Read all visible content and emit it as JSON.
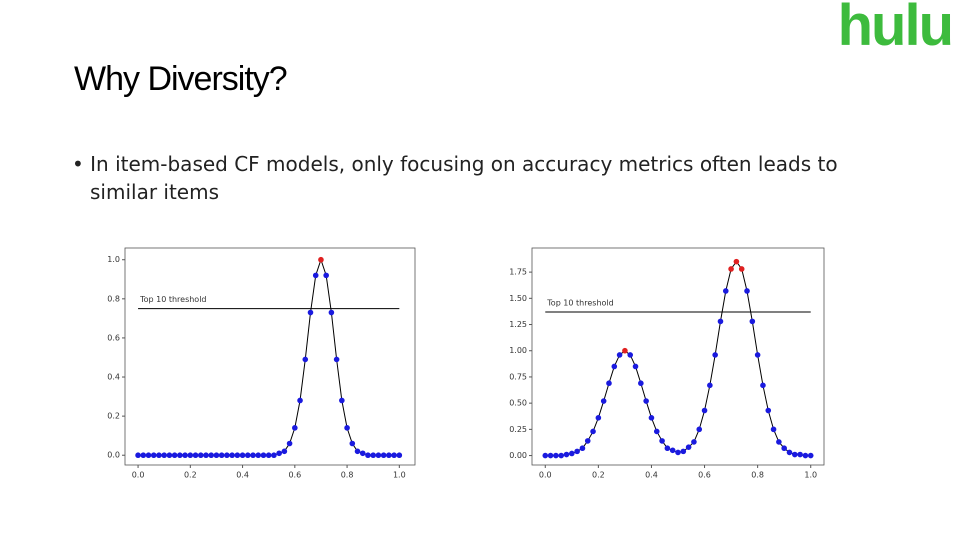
{
  "header": {
    "logo": "hulu",
    "title": "Why  Diversity?"
  },
  "bullet": "• In item-based CF models, only focusing on accuracy metrics often leads to similar items",
  "chart_data": [
    {
      "type": "scatter-line",
      "color": "#1a1adf",
      "line_color": "#000000",
      "highlight_color": "#e02020",
      "highlight": [
        35
      ],
      "threshold": {
        "value": 0.75,
        "label": "Top 10 threshold"
      },
      "xlim": [
        -0.05,
        1.06
      ],
      "ylim": [
        -0.05,
        1.06
      ],
      "xticks": [
        {
          "value": 0,
          "label": "0.0"
        },
        {
          "value": 0.2,
          "label": "0.2"
        },
        {
          "value": 0.4,
          "label": "0.4"
        },
        {
          "value": 0.6,
          "label": "0.6"
        },
        {
          "value": 0.8,
          "label": "0.8"
        },
        {
          "value": 1,
          "label": "1.0"
        }
      ],
      "yticks": [
        {
          "value": 0,
          "label": "0.0"
        },
        {
          "value": 0.2,
          "label": "0.2"
        },
        {
          "value": 0.4,
          "label": "0.4"
        },
        {
          "value": 0.6,
          "label": "0.6"
        },
        {
          "value": 0.8,
          "label": "0.8"
        },
        {
          "value": 1,
          "label": "1.0"
        }
      ],
      "x": [
        0,
        0.02,
        0.04,
        0.06,
        0.08,
        0.1,
        0.12,
        0.14,
        0.16,
        0.18,
        0.2,
        0.22,
        0.24,
        0.26,
        0.28,
        0.3,
        0.32,
        0.34,
        0.36,
        0.38,
        0.4,
        0.42,
        0.44,
        0.46,
        0.48,
        0.5,
        0.52,
        0.54,
        0.56,
        0.58,
        0.6,
        0.62,
        0.64,
        0.66,
        0.68,
        0.7,
        0.72,
        0.74,
        0.76,
        0.78,
        0.8,
        0.82,
        0.84,
        0.86,
        0.88,
        0.9,
        0.92,
        0.94,
        0.96,
        0.98,
        1
      ],
      "values": [
        0,
        0,
        0,
        0,
        0,
        0,
        0,
        0,
        0,
        0,
        0,
        0,
        0,
        0,
        0,
        0,
        0,
        0,
        0,
        0,
        0,
        0,
        0,
        0,
        0,
        0,
        0,
        0.01,
        0.02,
        0.06,
        0.14,
        0.28,
        0.49,
        0.73,
        0.92,
        1,
        0.92,
        0.73,
        0.49,
        0.28,
        0.14,
        0.06,
        0.02,
        0.01,
        0,
        0,
        0,
        0,
        0,
        0,
        0
      ]
    },
    {
      "type": "scatter-line",
      "color": "#1a1adf",
      "line_color": "#000000",
      "highlight_color": "#e02020",
      "highlight": [
        15,
        35,
        36,
        37
      ],
      "threshold": {
        "value": 1.37,
        "label": "Top 10 threshold"
      },
      "xlim": [
        -0.05,
        1.05
      ],
      "ylim": [
        -0.09,
        1.98
      ],
      "xticks": [
        {
          "value": 0,
          "label": "0.0"
        },
        {
          "value": 0.2,
          "label": "0.2"
        },
        {
          "value": 0.4,
          "label": "0.4"
        },
        {
          "value": 0.6,
          "label": "0.6"
        },
        {
          "value": 0.8,
          "label": "0.8"
        },
        {
          "value": 1,
          "label": "1.0"
        }
      ],
      "yticks": [
        {
          "value": 0,
          "label": "0.00"
        },
        {
          "value": 0.25,
          "label": "0.25"
        },
        {
          "value": 0.5,
          "label": "0.50"
        },
        {
          "value": 0.75,
          "label": "0.75"
        },
        {
          "value": 1,
          "label": "1.00"
        },
        {
          "value": 1.25,
          "label": "1.25"
        },
        {
          "value": 1.5,
          "label": "1.50"
        },
        {
          "value": 1.75,
          "label": "1.75"
        }
      ],
      "x": [
        0,
        0.02,
        0.04,
        0.06,
        0.08,
        0.1,
        0.12,
        0.14,
        0.16,
        0.18,
        0.2,
        0.22,
        0.24,
        0.26,
        0.28,
        0.3,
        0.32,
        0.34,
        0.36,
        0.38,
        0.4,
        0.42,
        0.44,
        0.46,
        0.48,
        0.5,
        0.52,
        0.54,
        0.56,
        0.58,
        0.6,
        0.62,
        0.64,
        0.66,
        0.68,
        0.7,
        0.72,
        0.74,
        0.76,
        0.78,
        0.8,
        0.82,
        0.84,
        0.86,
        0.88,
        0.9,
        0.92,
        0.94,
        0.96,
        0.98,
        1
      ],
      "values": [
        0,
        0,
        0,
        0,
        0.01,
        0.02,
        0.04,
        0.07,
        0.14,
        0.23,
        0.36,
        0.52,
        0.69,
        0.85,
        0.96,
        1,
        0.96,
        0.85,
        0.69,
        0.52,
        0.36,
        0.23,
        0.14,
        0.07,
        0.05,
        0.03,
        0.04,
        0.08,
        0.13,
        0.25,
        0.43,
        0.67,
        0.96,
        1.28,
        1.57,
        1.78,
        1.85,
        1.78,
        1.57,
        1.28,
        0.96,
        0.67,
        0.43,
        0.25,
        0.13,
        0.07,
        0.03,
        0.01,
        0.01,
        0,
        0
      ]
    }
  ]
}
